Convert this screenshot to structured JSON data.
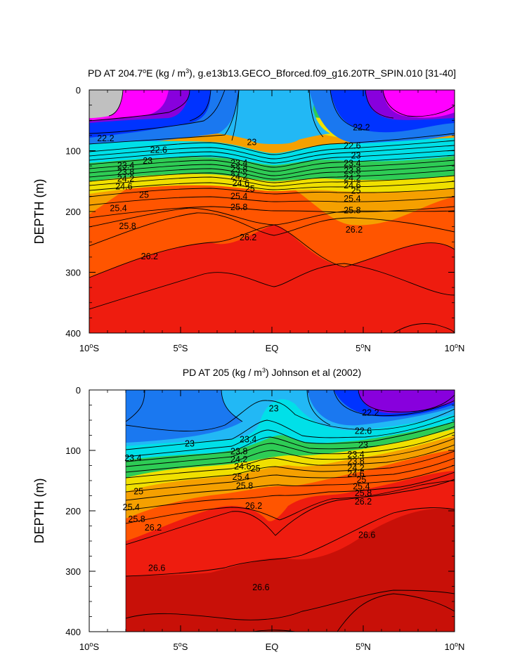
{
  "chart_data": [
    {
      "type": "contour",
      "title_prefix": "PD AT 204.7",
      "title_sup1": "o",
      "title_mid": "E (kg / m",
      "title_sup2": "3",
      "title_suffix": "), g.e13b13.GECO_Bforced.f09_g16.20TR_SPIN.010 [31-40]",
      "ylabel": "DEPTH (m)",
      "y_ticks": [
        "0",
        "100",
        "200",
        "300",
        "400"
      ],
      "x_ticks": [
        {
          "num": "10",
          "deg": "o",
          "hem": "S"
        },
        {
          "num": "5",
          "deg": "o",
          "hem": "S"
        },
        {
          "num": "EQ",
          "deg": "",
          "hem": ""
        },
        {
          "num": "5",
          "deg": "o",
          "hem": "N"
        },
        {
          "num": "10",
          "deg": "o",
          "hem": "N"
        }
      ],
      "xlim": [
        -10,
        10
      ],
      "ylim": [
        400,
        0
      ],
      "contour_labels": [
        {
          "text": "22.2",
          "lat": -9.1,
          "depth": 80
        },
        {
          "text": "22.6",
          "lat": -6.2,
          "depth": 99
        },
        {
          "text": "23",
          "lat": -6.8,
          "depth": 117
        },
        {
          "text": "23.4",
          "lat": -8.0,
          "depth": 124
        },
        {
          "text": "23.8",
          "lat": -8.0,
          "depth": 135
        },
        {
          "text": "24.2",
          "lat": -8.0,
          "depth": 146
        },
        {
          "text": "24.6",
          "lat": -8.1,
          "depth": 159
        },
        {
          "text": "25",
          "lat": -7.0,
          "depth": 173
        },
        {
          "text": "25.4",
          "lat": -8.4,
          "depth": 195
        },
        {
          "text": "25.8",
          "lat": -7.9,
          "depth": 224
        },
        {
          "text": "26.2",
          "lat": -6.7,
          "depth": 274
        },
        {
          "text": "23",
          "lat": -1.1,
          "depth": 86
        },
        {
          "text": "23.4",
          "lat": -1.8,
          "depth": 120
        },
        {
          "text": "23.8",
          "lat": -1.8,
          "depth": 131
        },
        {
          "text": "24.2",
          "lat": -1.8,
          "depth": 143
        },
        {
          "text": "24.6",
          "lat": -1.7,
          "depth": 154
        },
        {
          "text": "25",
          "lat": -1.2,
          "depth": 163
        },
        {
          "text": "25.4",
          "lat": -1.8,
          "depth": 175
        },
        {
          "text": "25.8",
          "lat": -1.8,
          "depth": 193
        },
        {
          "text": "26.2",
          "lat": -1.3,
          "depth": 243
        },
        {
          "text": "22.2",
          "lat": 4.9,
          "depth": 62
        },
        {
          "text": "22.6",
          "lat": 4.4,
          "depth": 92
        },
        {
          "text": "23",
          "lat": 4.6,
          "depth": 108
        },
        {
          "text": "23.4",
          "lat": 4.4,
          "depth": 121
        },
        {
          "text": "23.8",
          "lat": 4.4,
          "depth": 133
        },
        {
          "text": "24.2",
          "lat": 4.4,
          "depth": 145
        },
        {
          "text": "24.6",
          "lat": 4.4,
          "depth": 157
        },
        {
          "text": "25",
          "lat": 4.6,
          "depth": 166
        },
        {
          "text": "25.4",
          "lat": 4.4,
          "depth": 179
        },
        {
          "text": "25.8",
          "lat": 4.4,
          "depth": 198
        },
        {
          "text": "26.2",
          "lat": 4.5,
          "depth": 230
        }
      ]
    },
    {
      "type": "contour",
      "title_prefix": "PD AT 205 (kg / m",
      "title_sup": "3",
      "title_suffix": ") Johnson et al (2002)",
      "ylabel": "DEPTH (m)",
      "y_ticks": [
        "0",
        "100",
        "200",
        "300",
        "400"
      ],
      "x_ticks": [
        {
          "num": "10",
          "deg": "o",
          "hem": "S"
        },
        {
          "num": "5",
          "deg": "o",
          "hem": "S"
        },
        {
          "num": "EQ",
          "deg": "",
          "hem": ""
        },
        {
          "num": "5",
          "deg": "o",
          "hem": "N"
        },
        {
          "num": "10",
          "deg": "o",
          "hem": "N"
        }
      ],
      "xlim": [
        -10,
        10
      ],
      "ylim": [
        400,
        0
      ],
      "data_lat_range": [
        -8,
        10
      ],
      "contour_labels": [
        {
          "text": "23",
          "lat": -4.5,
          "depth": 89
        },
        {
          "text": "23.4",
          "lat": -7.6,
          "depth": 113
        },
        {
          "text": "25",
          "lat": -7.3,
          "depth": 168
        },
        {
          "text": "25.4",
          "lat": -7.7,
          "depth": 194
        },
        {
          "text": "25.8",
          "lat": -7.4,
          "depth": 214
        },
        {
          "text": "26.2",
          "lat": -6.5,
          "depth": 228
        },
        {
          "text": "26.6",
          "lat": -6.3,
          "depth": 295
        },
        {
          "text": "23",
          "lat": 0.1,
          "depth": 31
        },
        {
          "text": "23.4",
          "lat": -1.3,
          "depth": 82
        },
        {
          "text": "23.8",
          "lat": -1.8,
          "depth": 102
        },
        {
          "text": "24.2",
          "lat": -1.8,
          "depth": 115
        },
        {
          "text": "24.6",
          "lat": -1.6,
          "depth": 127
        },
        {
          "text": "25",
          "lat": -0.9,
          "depth": 130
        },
        {
          "text": "25.4",
          "lat": -1.7,
          "depth": 144
        },
        {
          "text": "25.8",
          "lat": -1.5,
          "depth": 159
        },
        {
          "text": "26.2",
          "lat": -1.0,
          "depth": 192
        },
        {
          "text": "26.6",
          "lat": -0.6,
          "depth": 327
        },
        {
          "text": "22.2",
          "lat": 5.4,
          "depth": 38
        },
        {
          "text": "22.6",
          "lat": 5.0,
          "depth": 68
        },
        {
          "text": "23",
          "lat": 5.0,
          "depth": 91
        },
        {
          "text": "23.4",
          "lat": 4.6,
          "depth": 107
        },
        {
          "text": "23.8",
          "lat": 4.6,
          "depth": 118
        },
        {
          "text": "24.2",
          "lat": 4.6,
          "depth": 129
        },
        {
          "text": "24.6",
          "lat": 4.6,
          "depth": 139
        },
        {
          "text": "25",
          "lat": 4.9,
          "depth": 149
        },
        {
          "text": "25.4",
          "lat": 4.9,
          "depth": 160
        },
        {
          "text": "25.8",
          "lat": 5.0,
          "depth": 171
        },
        {
          "text": "26.2",
          "lat": 5.0,
          "depth": 185
        },
        {
          "text": "26.6",
          "lat": 5.2,
          "depth": 240
        }
      ]
    }
  ],
  "colors": {
    "magenta": "#ff00ff",
    "purple": "#8800dd",
    "blue": "#0033ff",
    "azure": "#1a78f0",
    "sky": "#22b8f5",
    "cyan": "#00e0e8",
    "green": "#2ecc55",
    "yellow": "#f0e000",
    "orange": "#f5a000",
    "red_orange": "#ff5500",
    "red": "#ee1c0f",
    "dark_red": "#c81008",
    "missing": "#c0c0c0"
  }
}
